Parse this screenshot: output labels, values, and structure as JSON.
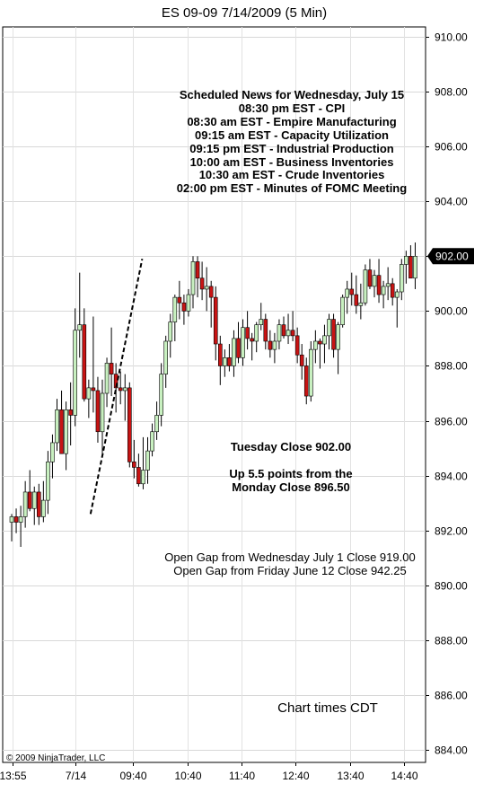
{
  "chart_data": {
    "type": "candlestick",
    "title": "ES 09-09  7/14/2009 (5 Min)",
    "y_ticks": [
      "910.00",
      "908.00",
      "906.00",
      "904.00",
      "902.00",
      "900.00",
      "898.00",
      "896.00",
      "894.00",
      "892.00",
      "890.00",
      "888.00",
      "886.00",
      "884.00"
    ],
    "ylim": [
      883.6,
      910.4
    ],
    "x_ticks": [
      "13:55",
      "7/14",
      "09:40",
      "10:40",
      "11:40",
      "12:40",
      "13:40",
      "14:40"
    ],
    "last_price_label": "902.00",
    "last_price": 902.0,
    "grid": true,
    "colors": {
      "up": "#c8f0c0",
      "down": "#c81414",
      "wick": "#000000",
      "last_label_bg": "#000000"
    },
    "candles": [
      [
        892.3,
        892.6,
        891.6,
        892.5
      ],
      [
        892.5,
        892.8,
        891.9,
        892.3
      ],
      [
        892.3,
        892.9,
        891.4,
        892.5
      ],
      [
        892.5,
        893.8,
        892.1,
        893.4
      ],
      [
        893.4,
        894.2,
        892.7,
        892.8
      ],
      [
        892.8,
        893.6,
        892.2,
        893.4
      ],
      [
        893.4,
        893.7,
        892.2,
        892.5
      ],
      [
        892.5,
        893.8,
        892.3,
        893.1
      ],
      [
        893.1,
        894.9,
        892.6,
        894.5
      ],
      [
        894.5,
        895.5,
        893.9,
        895.2
      ],
      [
        895.2,
        896.8,
        894.9,
        896.4
      ],
      [
        896.4,
        897.1,
        894.8,
        894.8
      ],
      [
        894.8,
        896.7,
        894.2,
        896.4
      ],
      [
        896.4,
        897.4,
        895.1,
        896.2
      ],
      [
        896.2,
        900.1,
        895.8,
        899.3
      ],
      [
        899.3,
        901.4,
        898.3,
        899.5
      ],
      [
        899.5,
        900.1,
        896.7,
        896.8
      ],
      [
        896.8,
        897.5,
        896.1,
        897.2
      ],
      [
        897.2,
        899.8,
        896.3,
        897.1
      ],
      [
        897.1,
        897.6,
        895.2,
        895.6
      ],
      [
        895.6,
        897.5,
        894.8,
        897.0
      ],
      [
        897.0,
        898.3,
        896.5,
        898.1
      ],
      [
        898.1,
        899.4,
        896.9,
        897.7
      ],
      [
        897.7,
        898.1,
        896.3,
        897.2
      ],
      [
        897.2,
        897.8,
        896.6,
        897.1
      ],
      [
        897.1,
        897.7,
        896.0,
        897.2
      ],
      [
        897.2,
        897.4,
        894.3,
        894.5
      ],
      [
        894.5,
        895.3,
        893.9,
        894.3
      ],
      [
        894.3,
        894.8,
        893.6,
        893.7
      ],
      [
        893.7,
        895.4,
        893.5,
        894.2
      ],
      [
        894.2,
        895.4,
        893.7,
        894.9
      ],
      [
        894.9,
        895.9,
        894.7,
        895.6
      ],
      [
        895.6,
        896.7,
        895.3,
        896.2
      ],
      [
        896.2,
        898.1,
        895.8,
        897.7
      ],
      [
        897.7,
        899.1,
        897.2,
        898.9
      ],
      [
        898.9,
        899.9,
        898.3,
        899.6
      ],
      [
        899.6,
        900.6,
        898.9,
        900.5
      ],
      [
        900.5,
        901.1,
        899.7,
        900.3
      ],
      [
        900.3,
        900.6,
        899.5,
        900.0
      ],
      [
        900.0,
        900.8,
        899.8,
        900.6
      ],
      [
        900.6,
        902.0,
        900.1,
        901.8
      ],
      [
        901.8,
        902.0,
        900.5,
        901.2
      ],
      [
        901.2,
        901.8,
        900.4,
        900.8
      ],
      [
        900.8,
        901.6,
        900.0,
        900.9
      ],
      [
        900.9,
        901.1,
        899.4,
        900.5
      ],
      [
        900.5,
        900.9,
        898.2,
        898.8
      ],
      [
        898.8,
        899.1,
        897.3,
        898.0
      ],
      [
        898.0,
        898.6,
        897.6,
        898.3
      ],
      [
        898.3,
        898.8,
        897.8,
        898.0
      ],
      [
        898.0,
        899.3,
        897.6,
        899.0
      ],
      [
        899.0,
        899.6,
        898.1,
        898.3
      ],
      [
        898.3,
        899.7,
        898.0,
        899.4
      ],
      [
        899.4,
        900.0,
        898.6,
        899.0
      ],
      [
        899.0,
        899.2,
        898.2,
        898.9
      ],
      [
        898.9,
        899.6,
        898.5,
        899.5
      ],
      [
        899.5,
        900.3,
        899.3,
        899.7
      ],
      [
        899.7,
        899.9,
        898.6,
        898.9
      ],
      [
        898.9,
        899.3,
        898.3,
        898.6
      ],
      [
        898.6,
        899.2,
        898.1,
        898.9
      ],
      [
        898.9,
        899.7,
        898.6,
        899.5
      ],
      [
        899.5,
        899.8,
        899.0,
        899.1
      ],
      [
        899.1,
        899.9,
        898.8,
        899.3
      ],
      [
        899.3,
        900.0,
        898.9,
        899.1
      ],
      [
        899.1,
        899.4,
        898.1,
        898.4
      ],
      [
        898.4,
        898.8,
        897.5,
        898.0
      ],
      [
        898.0,
        898.3,
        896.6,
        896.9
      ],
      [
        896.9,
        898.9,
        896.7,
        898.6
      ],
      [
        898.6,
        899.3,
        898.1,
        898.9
      ],
      [
        898.9,
        899.0,
        897.9,
        898.8
      ],
      [
        898.8,
        899.5,
        898.1,
        899.1
      ],
      [
        899.1,
        899.9,
        898.6,
        899.7
      ],
      [
        899.7,
        899.9,
        898.3,
        898.6
      ],
      [
        898.6,
        899.6,
        897.7,
        899.5
      ],
      [
        899.5,
        900.6,
        899.4,
        900.5
      ],
      [
        900.5,
        901.1,
        899.9,
        900.8
      ],
      [
        900.8,
        901.4,
        900.2,
        900.6
      ],
      [
        900.6,
        901.3,
        899.9,
        900.2
      ],
      [
        900.2,
        901.0,
        899.7,
        900.3
      ],
      [
        900.3,
        901.7,
        900.2,
        901.5
      ],
      [
        901.5,
        901.9,
        900.8,
        900.9
      ],
      [
        900.9,
        901.5,
        900.5,
        901.3
      ],
      [
        901.3,
        901.9,
        900.3,
        900.6
      ],
      [
        900.6,
        901.1,
        900.1,
        900.9
      ],
      [
        900.9,
        901.6,
        900.4,
        901.0
      ],
      [
        901.0,
        901.2,
        900.2,
        900.5
      ],
      [
        900.5,
        900.8,
        899.4,
        900.7
      ],
      [
        900.7,
        901.9,
        900.4,
        901.7
      ],
      [
        901.7,
        902.2,
        901.0,
        902.0
      ],
      [
        902.0,
        902.4,
        901.4,
        901.2
      ],
      [
        901.2,
        902.5,
        900.8,
        902.0
      ]
    ],
    "trendline": {
      "from": [
        17,
        892.6
      ],
      "to": [
        28,
        901.9
      ],
      "style": "dashed"
    },
    "annotations": {
      "scheduled_news": [
        "Scheduled News for Wednesday, July 15",
        "08:30 pm EST - CPI",
        "08:30 am EST - Empire Manufacturing",
        "09:15 am EST - Capacity Utilization",
        "09:15 pm EST - Industrial Production",
        "10:00 am EST - Business Inventories",
        "10:30 am EST - Crude Inventories",
        "02:00 pm EST - Minutes of FOMC Meeting"
      ],
      "close_note": [
        "Tuesday Close 902.00",
        "Up 5.5 points from the",
        "Monday Close 896.50"
      ],
      "gaps": [
        "Open Gap from Wednesday July 1 Close 919.00",
        "Open Gap from Friday June 12 Close 942.25"
      ],
      "chart_times": "Chart times CDT",
      "copyright": "© 2009 NinjaTrader, LLC"
    }
  }
}
